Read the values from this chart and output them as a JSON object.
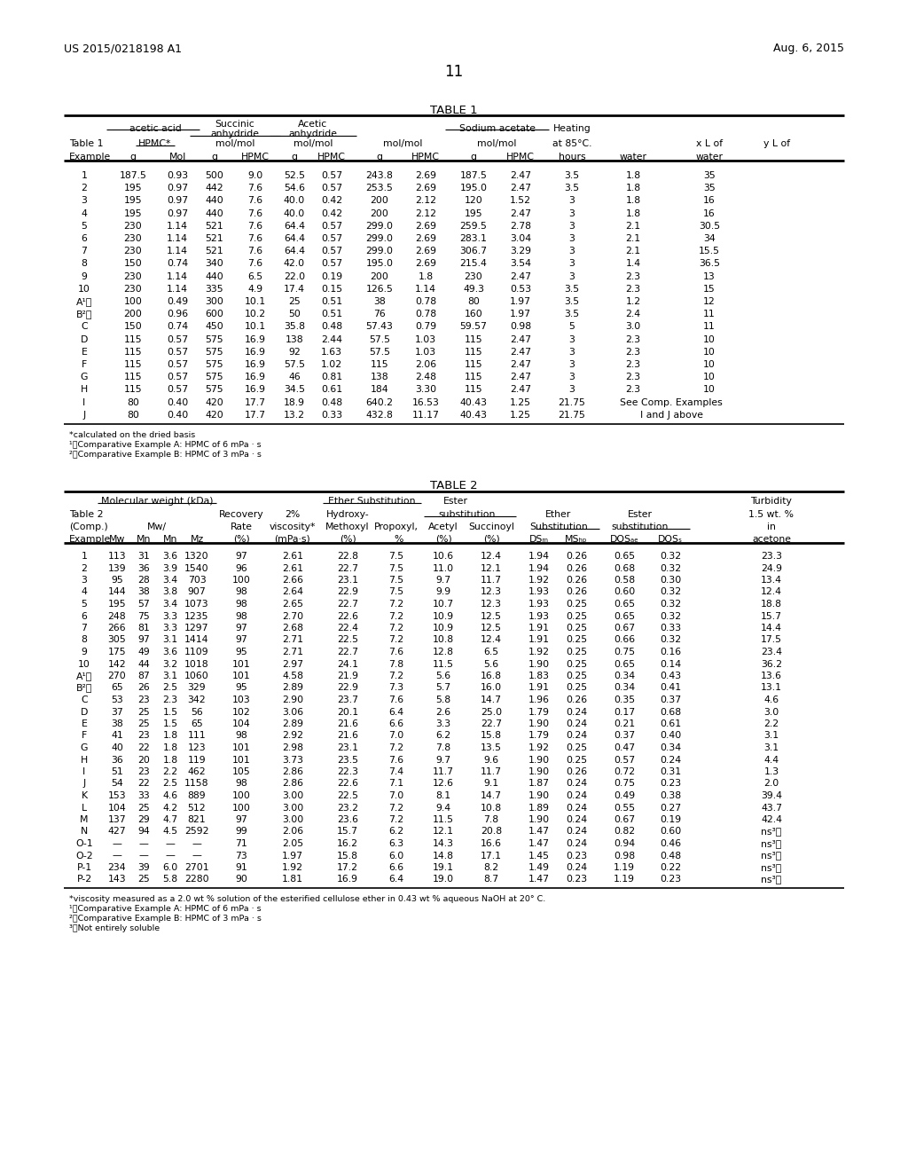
{
  "header_left": "US 2015/0218198 A1",
  "header_right": "Aug. 6, 2015",
  "page_num": "11",
  "table1_title": "TABLE 1",
  "table1_data": [
    [
      "1",
      "187.5",
      "0.93",
      "500",
      "9.0",
      "52.5",
      "0.57",
      "243.8",
      "2.69",
      "187.5",
      "2.47",
      "3.5",
      "1.8",
      "35"
    ],
    [
      "2",
      "195",
      "0.97",
      "442",
      "7.6",
      "54.6",
      "0.57",
      "253.5",
      "2.69",
      "195.0",
      "2.47",
      "3.5",
      "1.8",
      "35"
    ],
    [
      "3",
      "195",
      "0.97",
      "440",
      "7.6",
      "40.0",
      "0.42",
      "200",
      "2.12",
      "120",
      "1.52",
      "3",
      "1.8",
      "16"
    ],
    [
      "4",
      "195",
      "0.97",
      "440",
      "7.6",
      "40.0",
      "0.42",
      "200",
      "2.12",
      "195",
      "2.47",
      "3",
      "1.8",
      "16"
    ],
    [
      "5",
      "230",
      "1.14",
      "521",
      "7.6",
      "64.4",
      "0.57",
      "299.0",
      "2.69",
      "259.5",
      "2.78",
      "3",
      "2.1",
      "30.5"
    ],
    [
      "6",
      "230",
      "1.14",
      "521",
      "7.6",
      "64.4",
      "0.57",
      "299.0",
      "2.69",
      "283.1",
      "3.04",
      "3",
      "2.1",
      "34"
    ],
    [
      "7",
      "230",
      "1.14",
      "521",
      "7.6",
      "64.4",
      "0.57",
      "299.0",
      "2.69",
      "306.7",
      "3.29",
      "3",
      "2.1",
      "15.5"
    ],
    [
      "8",
      "150",
      "0.74",
      "340",
      "7.6",
      "42.0",
      "0.57",
      "195.0",
      "2.69",
      "215.4",
      "3.54",
      "3",
      "1.4",
      "36.5"
    ],
    [
      "9",
      "230",
      "1.14",
      "440",
      "6.5",
      "22.0",
      "0.19",
      "200",
      "1.8",
      "230",
      "2.47",
      "3",
      "2.3",
      "13"
    ],
    [
      "10",
      "230",
      "1.14",
      "335",
      "4.9",
      "17.4",
      "0.15",
      "126.5",
      "1.14",
      "49.3",
      "0.53",
      "3.5",
      "2.3",
      "15"
    ],
    [
      "A¹⧟",
      "100",
      "0.49",
      "300",
      "10.1",
      "25",
      "0.51",
      "38",
      "0.78",
      "80",
      "1.97",
      "3.5",
      "1.2",
      "12"
    ],
    [
      "B²⧟",
      "200",
      "0.96",
      "600",
      "10.2",
      "50",
      "0.51",
      "76",
      "0.78",
      "160",
      "1.97",
      "3.5",
      "2.4",
      "11"
    ],
    [
      "C",
      "150",
      "0.74",
      "450",
      "10.1",
      "35.8",
      "0.48",
      "57.43",
      "0.79",
      "59.57",
      "0.98",
      "5",
      "3.0",
      "11"
    ],
    [
      "D",
      "115",
      "0.57",
      "575",
      "16.9",
      "138",
      "2.44",
      "57.5",
      "1.03",
      "115",
      "2.47",
      "3",
      "2.3",
      "10"
    ],
    [
      "E",
      "115",
      "0.57",
      "575",
      "16.9",
      "92",
      "1.63",
      "57.5",
      "1.03",
      "115",
      "2.47",
      "3",
      "2.3",
      "10"
    ],
    [
      "F",
      "115",
      "0.57",
      "575",
      "16.9",
      "57.5",
      "1.02",
      "115",
      "2.06",
      "115",
      "2.47",
      "3",
      "2.3",
      "10"
    ],
    [
      "G",
      "115",
      "0.57",
      "575",
      "16.9",
      "46",
      "0.81",
      "138",
      "2.48",
      "115",
      "2.47",
      "3",
      "2.3",
      "10"
    ],
    [
      "H",
      "115",
      "0.57",
      "575",
      "16.9",
      "34.5",
      "0.61",
      "184",
      "3.30",
      "115",
      "2.47",
      "3",
      "2.3",
      "10"
    ],
    [
      "I",
      "80",
      "0.40",
      "420",
      "17.7",
      "18.9",
      "0.48",
      "640.2",
      "16.53",
      "40.43",
      "1.25",
      "21.75",
      "MERGE_I",
      ""
    ],
    [
      "J",
      "80",
      "0.40",
      "420",
      "17.7",
      "13.2",
      "0.33",
      "432.8",
      "11.17",
      "40.43",
      "1.25",
      "21.75",
      "MERGE_J",
      ""
    ]
  ],
  "table1_footnotes": [
    "*calculated on the dried basis",
    "¹⧟Comparative Example A: HPMC of 6 mPa · s",
    "²⧟Comparative Example B: HPMC of 3 mPa · s"
  ],
  "table2_title": "TABLE 2",
  "table2_data": [
    [
      "1",
      "113",
      "31",
      "3.6",
      "1320",
      "97",
      "2.61",
      "22.8",
      "7.5",
      "10.6",
      "12.4",
      "1.94",
      "0.26",
      "0.65",
      "0.32",
      "23.3"
    ],
    [
      "2",
      "139",
      "36",
      "3.9",
      "1540",
      "96",
      "2.61",
      "22.7",
      "7.5",
      "11.0",
      "12.1",
      "1.94",
      "0.26",
      "0.68",
      "0.32",
      "24.9"
    ],
    [
      "3",
      "95",
      "28",
      "3.4",
      "703",
      "100",
      "2.66",
      "23.1",
      "7.5",
      "9.7",
      "11.7",
      "1.92",
      "0.26",
      "0.58",
      "0.30",
      "13.4"
    ],
    [
      "4",
      "144",
      "38",
      "3.8",
      "907",
      "98",
      "2.64",
      "22.9",
      "7.5",
      "9.9",
      "12.3",
      "1.93",
      "0.26",
      "0.60",
      "0.32",
      "12.4"
    ],
    [
      "5",
      "195",
      "57",
      "3.4",
      "1073",
      "98",
      "2.65",
      "22.7",
      "7.2",
      "10.7",
      "12.3",
      "1.93",
      "0.25",
      "0.65",
      "0.32",
      "18.8"
    ],
    [
      "6",
      "248",
      "75",
      "3.3",
      "1235",
      "98",
      "2.70",
      "22.6",
      "7.2",
      "10.9",
      "12.5",
      "1.93",
      "0.25",
      "0.65",
      "0.32",
      "15.7"
    ],
    [
      "7",
      "266",
      "81",
      "3.3",
      "1297",
      "97",
      "2.68",
      "22.4",
      "7.2",
      "10.9",
      "12.5",
      "1.91",
      "0.25",
      "0.67",
      "0.33",
      "14.4"
    ],
    [
      "8",
      "305",
      "97",
      "3.1",
      "1414",
      "97",
      "2.71",
      "22.5",
      "7.2",
      "10.8",
      "12.4",
      "1.91",
      "0.25",
      "0.66",
      "0.32",
      "17.5"
    ],
    [
      "9",
      "175",
      "49",
      "3.6",
      "1109",
      "95",
      "2.71",
      "22.7",
      "7.6",
      "12.8",
      "6.5",
      "1.92",
      "0.25",
      "0.75",
      "0.16",
      "23.4"
    ],
    [
      "10",
      "142",
      "44",
      "3.2",
      "1018",
      "101",
      "2.97",
      "24.1",
      "7.8",
      "11.5",
      "5.6",
      "1.90",
      "0.25",
      "0.65",
      "0.14",
      "36.2"
    ],
    [
      "A¹⧟",
      "270",
      "87",
      "3.1",
      "1060",
      "101",
      "4.58",
      "21.9",
      "7.2",
      "5.6",
      "16.8",
      "1.83",
      "0.25",
      "0.34",
      "0.43",
      "13.6"
    ],
    [
      "B²⧟",
      "65",
      "26",
      "2.5",
      "329",
      "95",
      "2.89",
      "22.9",
      "7.3",
      "5.7",
      "16.0",
      "1.91",
      "0.25",
      "0.34",
      "0.41",
      "13.1"
    ],
    [
      "C",
      "53",
      "23",
      "2.3",
      "342",
      "103",
      "2.90",
      "23.7",
      "7.6",
      "5.8",
      "14.7",
      "1.96",
      "0.26",
      "0.35",
      "0.37",
      "4.6"
    ],
    [
      "D",
      "37",
      "25",
      "1.5",
      "56",
      "102",
      "3.06",
      "20.1",
      "6.4",
      "2.6",
      "25.0",
      "1.79",
      "0.24",
      "0.17",
      "0.68",
      "3.0"
    ],
    [
      "E",
      "38",
      "25",
      "1.5",
      "65",
      "104",
      "2.89",
      "21.6",
      "6.6",
      "3.3",
      "22.7",
      "1.90",
      "0.24",
      "0.21",
      "0.61",
      "2.2"
    ],
    [
      "F",
      "41",
      "23",
      "1.8",
      "111",
      "98",
      "2.92",
      "21.6",
      "7.0",
      "6.2",
      "15.8",
      "1.79",
      "0.24",
      "0.37",
      "0.40",
      "3.1"
    ],
    [
      "G",
      "40",
      "22",
      "1.8",
      "123",
      "101",
      "2.98",
      "23.1",
      "7.2",
      "7.8",
      "13.5",
      "1.92",
      "0.25",
      "0.47",
      "0.34",
      "3.1"
    ],
    [
      "H",
      "36",
      "20",
      "1.8",
      "119",
      "101",
      "3.73",
      "23.5",
      "7.6",
      "9.7",
      "9.6",
      "1.90",
      "0.25",
      "0.57",
      "0.24",
      "4.4"
    ],
    [
      "I",
      "51",
      "23",
      "2.2",
      "462",
      "105",
      "2.86",
      "22.3",
      "7.4",
      "11.7",
      "11.7",
      "1.90",
      "0.26",
      "0.72",
      "0.31",
      "1.3"
    ],
    [
      "J",
      "54",
      "22",
      "2.5",
      "1158",
      "98",
      "2.86",
      "22.6",
      "7.1",
      "12.6",
      "9.1",
      "1.87",
      "0.24",
      "0.75",
      "0.23",
      "2.0"
    ],
    [
      "K",
      "153",
      "33",
      "4.6",
      "889",
      "100",
      "3.00",
      "22.5",
      "7.0",
      "8.1",
      "14.7",
      "1.90",
      "0.24",
      "0.49",
      "0.38",
      "39.4"
    ],
    [
      "L",
      "104",
      "25",
      "4.2",
      "512",
      "100",
      "3.00",
      "23.2",
      "7.2",
      "9.4",
      "10.8",
      "1.89",
      "0.24",
      "0.55",
      "0.27",
      "43.7"
    ],
    [
      "M",
      "137",
      "29",
      "4.7",
      "821",
      "97",
      "3.00",
      "23.6",
      "7.2",
      "11.5",
      "7.8",
      "1.90",
      "0.24",
      "0.67",
      "0.19",
      "42.4"
    ],
    [
      "N",
      "427",
      "94",
      "4.5",
      "2592",
      "99",
      "2.06",
      "15.7",
      "6.2",
      "12.1",
      "20.8",
      "1.47",
      "0.24",
      "0.82",
      "0.60",
      "ns³⧟"
    ],
    [
      "O-1",
      "—",
      "—",
      "—",
      "—",
      "71",
      "2.05",
      "16.2",
      "6.3",
      "14.3",
      "16.6",
      "1.47",
      "0.24",
      "0.94",
      "0.46",
      "ns³⧟"
    ],
    [
      "O-2",
      "—",
      "—",
      "—",
      "—",
      "73",
      "1.97",
      "15.8",
      "6.0",
      "14.8",
      "17.1",
      "1.45",
      "0.23",
      "0.98",
      "0.48",
      "ns³⧟"
    ],
    [
      "P-1",
      "234",
      "39",
      "6.0",
      "2701",
      "91",
      "1.92",
      "17.2",
      "6.6",
      "19.1",
      "8.2",
      "1.49",
      "0.24",
      "1.19",
      "0.22",
      "ns³⧟"
    ],
    [
      "P-2",
      "143",
      "25",
      "5.8",
      "2280",
      "90",
      "1.81",
      "16.9",
      "6.4",
      "19.0",
      "8.7",
      "1.47",
      "0.23",
      "1.19",
      "0.23",
      "ns³⧟"
    ]
  ],
  "table2_footnotes": [
    "*viscosity measured as a 2.0 wt % solution of the esterified cellulose ether in 0.43 wt % aqueous NaOH at 20° C.",
    "¹⧟Comparative Example A: HPMC of 6 mPa · s",
    "²⧟Comparative Example B: HPMC of 3 mPa · s",
    "³⧟Not entirely soluble"
  ]
}
